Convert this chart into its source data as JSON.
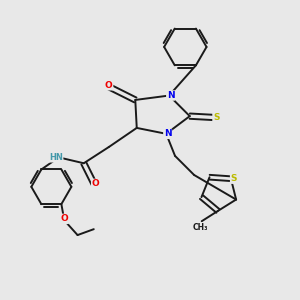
{
  "background_color": "#e8e8e8",
  "bond_color": "#1a1a1a",
  "figsize": [
    3.0,
    3.0
  ],
  "dpi": 100,
  "colors": {
    "N": "#0000ee",
    "O": "#ee0000",
    "S": "#bbbb00",
    "H": "#4499aa",
    "C": "#1a1a1a"
  },
  "lw": 1.4,
  "fs": 6.5
}
